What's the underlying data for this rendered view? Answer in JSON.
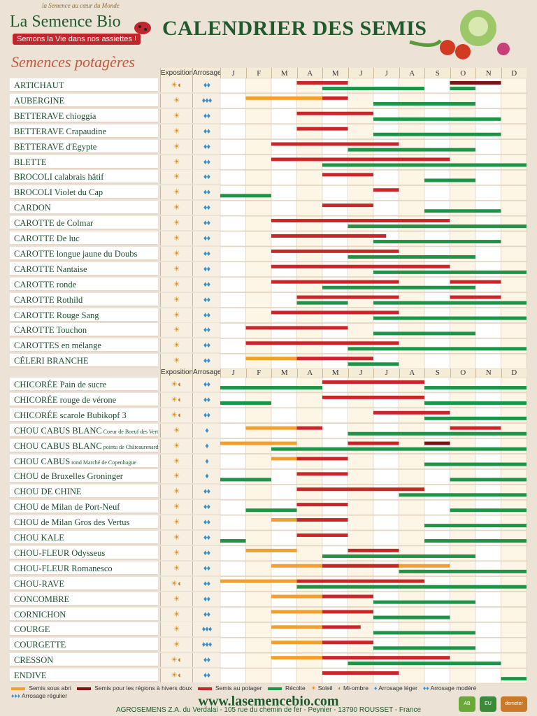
{
  "brand": {
    "name": "La Semence Bio",
    "tagline": "Semons la Vie dans nos assiettes !",
    "small": "la Semence au cœur du Monde"
  },
  "title": "CALENDRIER DES SEMIS",
  "subtitle": "Semences potagères",
  "headers": {
    "exposition": "Exposition",
    "arrosage": "Arrosage",
    "months": [
      "J",
      "F",
      "M",
      "A",
      "M",
      "J",
      "J",
      "A",
      "S",
      "O",
      "N",
      "D"
    ]
  },
  "colors": {
    "sous_abri": "#f0a030",
    "hiver_doux": "#7a1418",
    "potager": "#c9262c",
    "recolte": "#1e9448"
  },
  "chart_data": {
    "type": "table",
    "title": "CALENDRIER DES SEMIS",
    "columns": [
      "J",
      "F",
      "M",
      "A",
      "M",
      "J",
      "J",
      "A",
      "S",
      "O",
      "N",
      "D"
    ],
    "series_types": [
      "sous_abri",
      "hiver_doux",
      "potager",
      "recolte"
    ],
    "rows": [
      {
        "name": "ARTICHAUT",
        "expo": "sun,half",
        "water": 2,
        "bars": [
          [
            "potager",
            3,
            5
          ],
          [
            "hiver_doux",
            9,
            11
          ],
          [
            "recolte",
            4,
            8
          ],
          [
            "recolte",
            9,
            10
          ]
        ]
      },
      {
        "name": "AUBERGINE",
        "expo": "sun",
        "water": 3,
        "bars": [
          [
            "sous_abri",
            1,
            4
          ],
          [
            "potager",
            4,
            5
          ],
          [
            "recolte",
            6,
            10
          ]
        ]
      },
      {
        "name": "BETTERAVE chioggia",
        "expo": "sun",
        "water": 2,
        "bars": [
          [
            "potager",
            3,
            6
          ],
          [
            "recolte",
            6,
            11
          ]
        ]
      },
      {
        "name": "BETTERAVE Crapaudine",
        "expo": "sun",
        "water": 2,
        "bars": [
          [
            "potager",
            3,
            5
          ],
          [
            "recolte",
            6,
            11
          ]
        ]
      },
      {
        "name": "BETTERAVE d'Egypte",
        "expo": "sun",
        "water": 2,
        "bars": [
          [
            "potager",
            2,
            7
          ],
          [
            "recolte",
            5,
            10
          ]
        ]
      },
      {
        "name": "BLETTE",
        "expo": "sun",
        "water": 2,
        "bars": [
          [
            "potager",
            2,
            9
          ],
          [
            "recolte",
            4,
            12
          ]
        ]
      },
      {
        "name": "BROCOLI calabrais hâtif",
        "expo": "sun",
        "water": 2,
        "bars": [
          [
            "potager",
            4,
            6
          ],
          [
            "recolte",
            8,
            10
          ]
        ]
      },
      {
        "name": "BROCOLI Violet du Cap",
        "expo": "sun",
        "water": 2,
        "bars": [
          [
            "recolte",
            0,
            2
          ],
          [
            "potager",
            6,
            7
          ]
        ]
      },
      {
        "name": "CARDON",
        "expo": "sun",
        "water": 2,
        "bars": [
          [
            "potager",
            4,
            6
          ],
          [
            "recolte",
            8,
            11
          ]
        ]
      },
      {
        "name": "CAROTTE de Colmar",
        "expo": "sun",
        "water": 2,
        "bars": [
          [
            "potager",
            2,
            9
          ],
          [
            "recolte",
            5,
            12
          ]
        ]
      },
      {
        "name": "CAROTTE De luc",
        "expo": "sun",
        "water": 2,
        "bars": [
          [
            "potager",
            2,
            6.5
          ],
          [
            "recolte",
            6,
            11
          ]
        ]
      },
      {
        "name": "CAROTTE longue jaune du Doubs",
        "expo": "sun",
        "water": 2,
        "bars": [
          [
            "potager",
            2,
            7
          ],
          [
            "recolte",
            5,
            10
          ]
        ]
      },
      {
        "name": "CAROTTE Nantaise",
        "expo": "sun",
        "water": 2,
        "bars": [
          [
            "potager",
            2,
            9
          ],
          [
            "recolte",
            6,
            12
          ]
        ]
      },
      {
        "name": "CAROTTE ronde",
        "expo": "sun",
        "water": 2,
        "bars": [
          [
            "potager",
            2,
            7
          ],
          [
            "potager",
            9,
            11
          ],
          [
            "recolte",
            4,
            10
          ]
        ]
      },
      {
        "name": "CAROTTE Rothild",
        "expo": "sun",
        "water": 2,
        "bars": [
          [
            "potager",
            3,
            7
          ],
          [
            "potager",
            9,
            11
          ],
          [
            "recolte",
            3,
            5
          ],
          [
            "recolte",
            6,
            12
          ]
        ]
      },
      {
        "name": "CAROTTE Rouge Sang",
        "expo": "sun",
        "water": 2,
        "bars": [
          [
            "potager",
            2,
            7
          ],
          [
            "recolte",
            6,
            12
          ]
        ]
      },
      {
        "name": "CAROTTE Touchon",
        "expo": "sun",
        "water": 2,
        "bars": [
          [
            "potager",
            1,
            5
          ],
          [
            "recolte",
            6,
            10
          ]
        ]
      },
      {
        "name": "CAROTTES en mélange",
        "expo": "sun",
        "water": 2,
        "bars": [
          [
            "potager",
            1,
            7
          ],
          [
            "recolte",
            5,
            12
          ]
        ]
      },
      {
        "name": "CÉLERI BRANCHE",
        "expo": "sun",
        "water": 2,
        "bars": [
          [
            "sous_abri",
            1,
            3
          ],
          [
            "potager",
            3,
            6
          ],
          [
            "recolte",
            5,
            7
          ]
        ]
      },
      {
        "name": "CHICORÉE Pain de sucre",
        "expo": "sun,half",
        "water": 2,
        "bars": [
          [
            "recolte",
            0,
            4
          ],
          [
            "potager",
            4,
            8
          ],
          [
            "recolte",
            8,
            12
          ]
        ]
      },
      {
        "name": "CHICORÉE rouge de vérone",
        "expo": "sun,half",
        "water": 2,
        "bars": [
          [
            "recolte",
            0,
            2
          ],
          [
            "potager",
            4,
            8
          ],
          [
            "recolte",
            8,
            12
          ]
        ]
      },
      {
        "name": "CHICORÉE scarole Bubikopf 3",
        "expo": "sun,half",
        "water": 2,
        "bars": [
          [
            "potager",
            6,
            9
          ],
          [
            "recolte",
            8,
            12
          ]
        ]
      },
      {
        "name": "CHOU CABUS BLANC",
        "extra": "Coeur de Boeuf des Vertus 2",
        "expo": "sun",
        "water": 1,
        "bars": [
          [
            "sous_abri",
            1,
            3
          ],
          [
            "potager",
            3,
            4
          ],
          [
            "potager",
            9,
            11
          ],
          [
            "recolte",
            5,
            9
          ],
          [
            "recolte",
            9,
            12
          ]
        ]
      },
      {
        "name": "CHOU CABUS BLANC",
        "extra": "pointu de Châteaurenard",
        "expo": "sun",
        "water": 1,
        "bars": [
          [
            "sous_abri",
            0,
            3
          ],
          [
            "potager",
            5,
            7
          ],
          [
            "hiver_doux",
            8,
            9
          ],
          [
            "recolte",
            2,
            9
          ],
          [
            "recolte",
            9,
            12
          ]
        ]
      },
      {
        "name": "CHOU CABUS",
        "extra": "rond Marché de Copenhague",
        "expo": "sun",
        "water": 1,
        "bars": [
          [
            "sous_abri",
            2,
            3
          ],
          [
            "potager",
            3,
            5
          ],
          [
            "recolte",
            8,
            12
          ]
        ]
      },
      {
        "name": "CHOU de Bruxelles Groninger",
        "expo": "sun",
        "water": 1,
        "bars": [
          [
            "recolte",
            0,
            2
          ],
          [
            "potager",
            3,
            5
          ],
          [
            "recolte",
            9,
            12
          ]
        ]
      },
      {
        "name": "CHOU DE CHINE",
        "expo": "sun",
        "water": 2,
        "bars": [
          [
            "potager",
            3,
            8
          ],
          [
            "recolte",
            7,
            12
          ]
        ]
      },
      {
        "name": "CHOU de Milan de Port-Neuf",
        "expo": "sun",
        "water": 2,
        "bars": [
          [
            "recolte",
            1,
            3
          ],
          [
            "potager",
            3,
            5
          ],
          [
            "recolte",
            9,
            12
          ]
        ]
      },
      {
        "name": "CHOU de Milan Gros des Vertus",
        "expo": "sun",
        "water": 2,
        "bars": [
          [
            "sous_abri",
            2,
            3
          ],
          [
            "potager",
            3,
            5
          ],
          [
            "recolte",
            8,
            12
          ]
        ]
      },
      {
        "name": "CHOU KALE",
        "expo": "sun",
        "water": 2,
        "bars": [
          [
            "recolte",
            0,
            1
          ],
          [
            "potager",
            3,
            5
          ],
          [
            "recolte",
            8,
            12
          ]
        ]
      },
      {
        "name": "CHOU-FLEUR Odysseus",
        "expo": "sun",
        "water": 2,
        "bars": [
          [
            "sous_abri",
            1,
            3
          ],
          [
            "potager",
            5,
            7
          ],
          [
            "recolte",
            4,
            10
          ]
        ]
      },
      {
        "name": "CHOU-FLEUR Romanesco",
        "expo": "sun",
        "water": 2,
        "bars": [
          [
            "sous_abri",
            2,
            9
          ],
          [
            "potager",
            4,
            7
          ],
          [
            "recolte",
            7,
            12
          ]
        ]
      },
      {
        "name": "CHOU-RAVE",
        "expo": "sun,half",
        "water": 2,
        "bars": [
          [
            "sous_abri",
            0,
            3
          ],
          [
            "potager",
            3,
            8
          ],
          [
            "recolte",
            3,
            12
          ]
        ]
      },
      {
        "name": "CONCOMBRE",
        "expo": "sun",
        "water": 2,
        "bars": [
          [
            "sous_abri",
            2,
            4
          ],
          [
            "potager",
            4,
            6
          ],
          [
            "recolte",
            6,
            10
          ]
        ]
      },
      {
        "name": "CORNICHON",
        "expo": "sun",
        "water": 2,
        "bars": [
          [
            "sous_abri",
            2,
            4
          ],
          [
            "potager",
            4,
            6
          ],
          [
            "recolte",
            6,
            9
          ]
        ]
      },
      {
        "name": "COURGE",
        "expo": "sun",
        "water": 3,
        "bars": [
          [
            "sous_abri",
            2,
            4
          ],
          [
            "potager",
            4,
            5.5
          ],
          [
            "recolte",
            6,
            10
          ]
        ]
      },
      {
        "name": "COURGETTE",
        "expo": "sun",
        "water": 3,
        "bars": [
          [
            "sous_abri",
            2,
            4
          ],
          [
            "potager",
            4,
            6
          ],
          [
            "recolte",
            6,
            10
          ]
        ]
      },
      {
        "name": "CRESSON",
        "expo": "sun,half",
        "water": 2,
        "bars": [
          [
            "sous_abri",
            2,
            4
          ],
          [
            "potager",
            4,
            9
          ],
          [
            "recolte",
            5,
            11
          ]
        ]
      },
      {
        "name": "ENDIVE",
        "expo": "sun,half",
        "water": 2,
        "bars": [
          [
            "potager",
            4,
            7
          ],
          [
            "recolte",
            11,
            12
          ]
        ]
      }
    ]
  },
  "legend": [
    {
      "label": "Semis sous abri",
      "key": "sous_abri"
    },
    {
      "label": "Semis pour les régions à hivers doux",
      "key": "hiver_doux"
    },
    {
      "label": "Semis au potager",
      "key": "potager"
    },
    {
      "label": "Récolte",
      "key": "recolte"
    },
    {
      "label": "Soleil",
      "key": "sun"
    },
    {
      "label": "Mi-ombre",
      "key": "half"
    },
    {
      "label": "Arrosage léger",
      "key": "w1"
    },
    {
      "label": "Arrosage modéré",
      "key": "w2"
    },
    {
      "label": "Arrosage régulier",
      "key": "w3"
    }
  ],
  "footer": {
    "url": "www.lasemencebio.com",
    "address": "AGROSEMENS Z.A. du Verdalai - 105 rue du chemin de fer - Peynier - 13790 ROUSSET - France"
  },
  "badges": [
    "AB",
    "EU",
    "demeter"
  ]
}
